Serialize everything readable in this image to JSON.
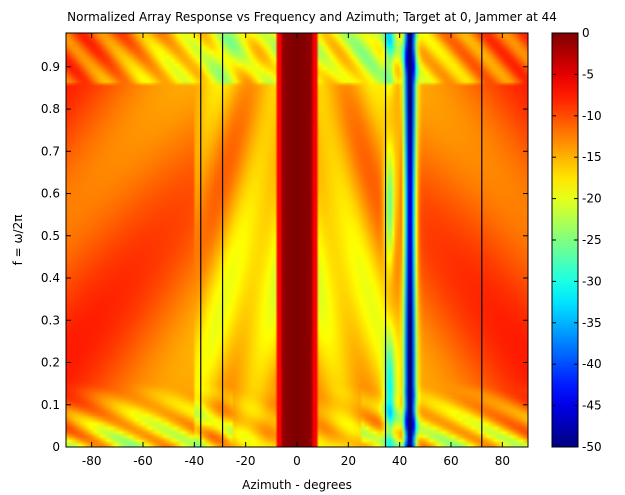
{
  "chart_data": {
    "type": "heatmap",
    "title": "Normalized Array Response vs Frequency and Azimuth;  Target at 0, Jammer at 44",
    "xlabel": "Azimuth - degrees",
    "ylabel": "f = ω/2π",
    "xlim": [
      -90,
      90
    ],
    "ylim": [
      0,
      0.98
    ],
    "x_ticks": [
      -80,
      -60,
      -40,
      -20,
      0,
      20,
      40,
      60,
      80
    ],
    "y_ticks": [
      0,
      0.1,
      0.2,
      0.3,
      0.4,
      0.5,
      0.6,
      0.7,
      0.8,
      0.9
    ],
    "colorbar": {
      "label": "",
      "range": [
        -50,
        0
      ],
      "ticks": [
        0,
        -5,
        -10,
        -15,
        -20,
        -25,
        -30,
        -35,
        -40,
        -45,
        -50
      ],
      "colormap": "jet"
    },
    "target_azimuth": 0,
    "jammer_azimuth": 44,
    "null_lines_azimuth": [
      -37.5,
      -29,
      34.5,
      72
    ],
    "mainlobe_halfwidth_deg": 6.5,
    "jammer_null_halfwidth_deg": 1.5,
    "grid": false
  }
}
